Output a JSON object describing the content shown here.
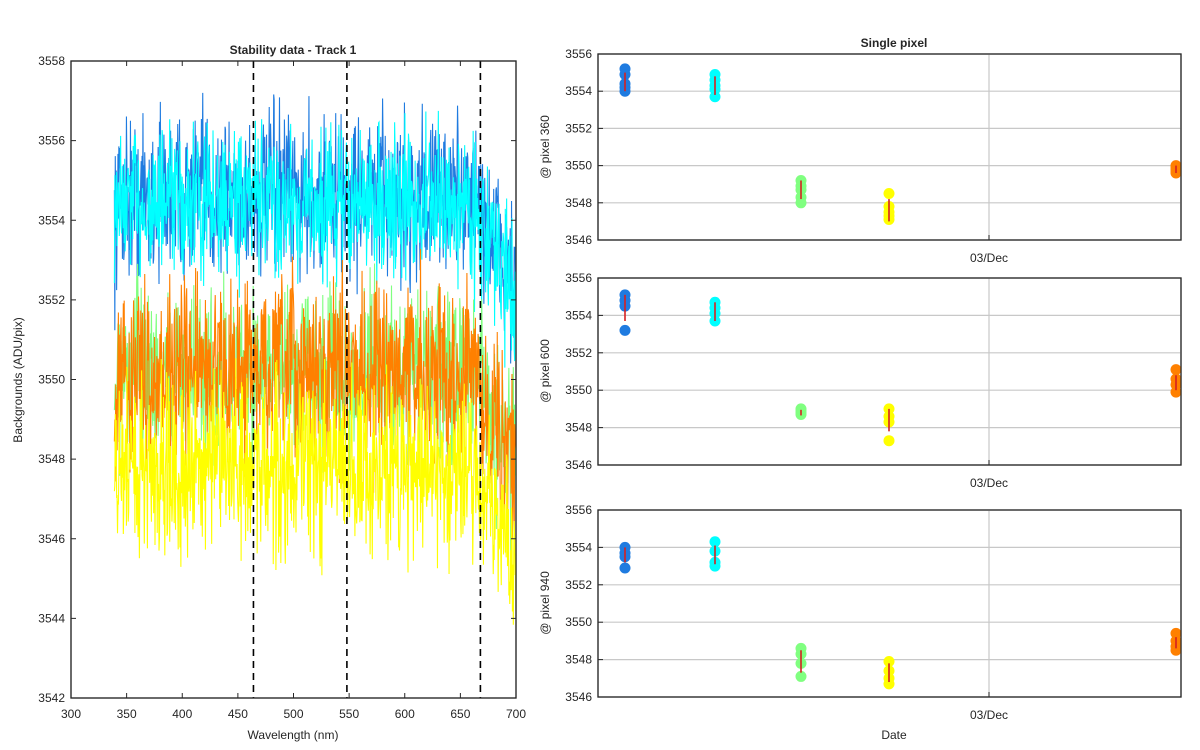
{
  "chart_data": [
    {
      "type": "line",
      "title": "Stability data - Track 1",
      "xlabel": "Wavelength (nm)",
      "ylabel": "Backgrounds (ADU/pix)",
      "xlim": [
        300,
        700
      ],
      "ylim": [
        3542,
        3558
      ],
      "xticks": [
        300,
        350,
        400,
        450,
        500,
        550,
        600,
        650,
        700
      ],
      "yticks": [
        3542,
        3544,
        3546,
        3548,
        3550,
        3552,
        3554,
        3556,
        3558
      ],
      "grid": false,
      "vertical_markers": [
        464,
        548,
        668
      ],
      "series": [
        {
          "color": "#1f7be0",
          "x_range": [
            339,
            700
          ],
          "mean": 3554.6,
          "spread": 1.0,
          "dip_end": 3552.5
        },
        {
          "color": "#00ffff",
          "x_range": [
            339,
            700
          ],
          "mean": 3554.4,
          "spread": 0.9,
          "dip_end": 3552.0
        },
        {
          "color": "#80ff80",
          "x_range": [
            339,
            700
          ],
          "mean": 3550.2,
          "spread": 1.0,
          "dip_end": 3548.0
        },
        {
          "color": "#ff8000",
          "x_range": [
            339,
            700
          ],
          "mean": 3550.2,
          "spread": 1.1,
          "dip_end": 3547.8
        },
        {
          "color": "#ffff00",
          "x_range": [
            339,
            700
          ],
          "mean": 3547.8,
          "spread": 1.1,
          "dip_end": 3545.3
        }
      ]
    },
    {
      "type": "scatter",
      "title": "Single pixel",
      "xlabel": "",
      "ylabel": "@ pixel 360",
      "ylim": [
        3546,
        3556
      ],
      "yticks": [
        3546,
        3548,
        3550,
        3552,
        3554,
        3556
      ],
      "xtick_labels": [
        "03/Dec"
      ],
      "grid": true,
      "groups": [
        {
          "color": "#1f7be0",
          "points": [
            3555.2,
            3554.9,
            3554.4,
            3554.2,
            3554.0
          ],
          "mean": 3554.5,
          "err": 0.5
        },
        {
          "color": "#00ffff",
          "points": [
            3554.9,
            3554.6,
            3554.3,
            3554.1,
            3553.7
          ],
          "mean": 3554.3,
          "err": 0.5
        },
        {
          "color": "#80ff80",
          "points": [
            3549.2,
            3548.9,
            3548.7,
            3548.3,
            3548.0
          ],
          "mean": 3548.7,
          "err": 0.5
        },
        {
          "color": "#ffff00",
          "points": [
            3548.5,
            3547.8,
            3547.5,
            3547.3,
            3547.1
          ],
          "mean": 3547.6,
          "err": 0.6
        },
        {
          "color": "#ff8000",
          "points": [
            3550.0,
            3549.9,
            3549.8,
            3549.7,
            3549.6
          ],
          "mean": 3549.8,
          "err": 0.2
        }
      ]
    },
    {
      "type": "scatter",
      "title": "",
      "xlabel": "",
      "ylabel": "@ pixel 600",
      "ylim": [
        3546,
        3556
      ],
      "yticks": [
        3546,
        3548,
        3550,
        3552,
        3554,
        3556
      ],
      "xtick_labels": [
        "03/Dec"
      ],
      "grid": true,
      "groups": [
        {
          "color": "#1f7be0",
          "points": [
            3555.1,
            3554.8,
            3554.5,
            3553.2
          ],
          "mean": 3554.4,
          "err": 0.7
        },
        {
          "color": "#00ffff",
          "points": [
            3554.7,
            3554.4,
            3554.1,
            3553.7
          ],
          "mean": 3554.2,
          "err": 0.5
        },
        {
          "color": "#80ff80",
          "points": [
            3549.0,
            3548.9,
            3548.8,
            3548.7
          ],
          "mean": 3548.8,
          "err": 0.15
        },
        {
          "color": "#ffff00",
          "points": [
            3549.0,
            3548.6,
            3548.3,
            3547.3
          ],
          "mean": 3548.4,
          "err": 0.6
        },
        {
          "color": "#ff8000",
          "points": [
            3551.1,
            3550.6,
            3550.3,
            3549.9
          ],
          "mean": 3550.4,
          "err": 0.4
        }
      ]
    },
    {
      "type": "scatter",
      "title": "",
      "xlabel": "Date",
      "ylabel": "@ pixel 940",
      "ylim": [
        3546,
        3556
      ],
      "yticks": [
        3546,
        3548,
        3550,
        3552,
        3554,
        3556
      ],
      "xtick_labels": [
        "03/Dec"
      ],
      "grid": true,
      "groups": [
        {
          "color": "#1f7be0",
          "points": [
            3554.0,
            3553.7,
            3553.5,
            3552.9
          ],
          "mean": 3553.6,
          "err": 0.4
        },
        {
          "color": "#00ffff",
          "points": [
            3554.3,
            3553.8,
            3553.2,
            3553.0
          ],
          "mean": 3553.6,
          "err": 0.5
        },
        {
          "color": "#80ff80",
          "points": [
            3548.6,
            3548.3,
            3547.8,
            3547.1
          ],
          "mean": 3547.9,
          "err": 0.6
        },
        {
          "color": "#ffff00",
          "points": [
            3547.9,
            3547.4,
            3547.0,
            3546.7
          ],
          "mean": 3547.3,
          "err": 0.5
        },
        {
          "color": "#ff8000",
          "points": [
            3549.4,
            3549.0,
            3548.7,
            3548.5
          ],
          "mean": 3548.9,
          "err": 0.3
        }
      ]
    }
  ]
}
